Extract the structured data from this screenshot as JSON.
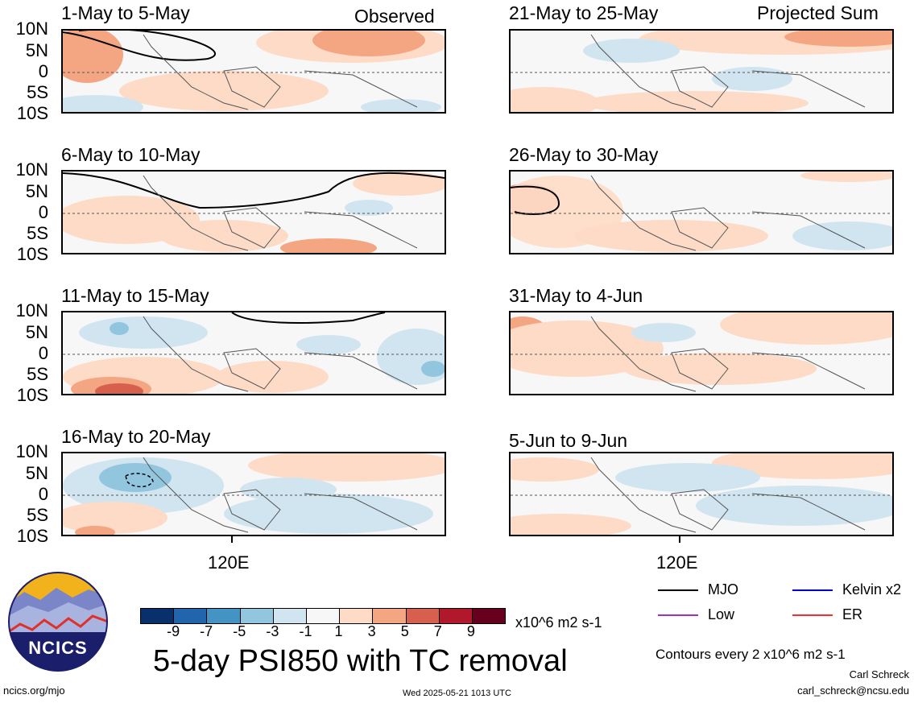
{
  "panels": [
    {
      "title": "1-May to 5-May",
      "tag": "Observed"
    },
    {
      "title": "6-May to 10-May",
      "tag": ""
    },
    {
      "title": "11-May to 15-May",
      "tag": ""
    },
    {
      "title": "16-May to 20-May",
      "tag": ""
    },
    {
      "title": "21-May to 25-May",
      "tag": "Projected Sum"
    },
    {
      "title": "26-May to 30-May",
      "tag": ""
    },
    {
      "title": "31-May to 4-Jun",
      "tag": ""
    },
    {
      "title": "5-Jun to 9-Jun",
      "tag": ""
    }
  ],
  "y_ticks": [
    "10N",
    "5N",
    "0",
    "5S",
    "10S"
  ],
  "x_label": "120E",
  "colorbar": {
    "ticks": [
      "-9",
      "-7",
      "-5",
      "-3",
      "-1",
      "1",
      "3",
      "5",
      "7",
      "9"
    ],
    "units": "x10^6 m2 s-1",
    "colors": [
      "#08306b",
      "#2166ac",
      "#4393c3",
      "#92c5de",
      "#d1e5f0",
      "#f7f7f7",
      "#fddbc7",
      "#f4a582",
      "#d6604d",
      "#b2182b",
      "#67001f"
    ]
  },
  "main_title": "5-day PSI850 with TC removal",
  "legend": {
    "items": [
      {
        "label": "MJO",
        "color": "#000000"
      },
      {
        "label": "Low",
        "color": "#9932cc"
      },
      {
        "label": "Kelvin x2",
        "color": "#0000cd"
      },
      {
        "label": "ER",
        "color": "#ff2a2a"
      }
    ],
    "contour_note": "Contours every 2 x10^6 m2 s-1"
  },
  "logo": {
    "text": "NCICS"
  },
  "footer": {
    "left_url": "ncics.org/mjo",
    "timestamp": "Wed 2025-05-21 1013 UTC",
    "author": "Carl Schreck",
    "email": "carl_schreck@ncsu.edu"
  }
}
